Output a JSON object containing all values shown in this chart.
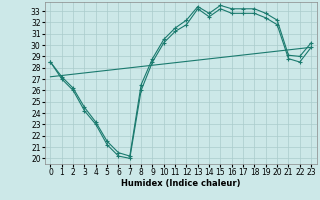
{
  "xlabel": "Humidex (Indice chaleur)",
  "bg_color": "#cce8e8",
  "grid_color": "#aacccc",
  "line_color": "#1a7a6e",
  "xlim": [
    -0.5,
    23.5
  ],
  "ylim": [
    19.5,
    33.8
  ],
  "yticks": [
    20,
    21,
    22,
    23,
    24,
    25,
    26,
    27,
    28,
    29,
    30,
    31,
    32,
    33
  ],
  "xticks": [
    0,
    1,
    2,
    3,
    4,
    5,
    6,
    7,
    8,
    9,
    10,
    11,
    12,
    13,
    14,
    15,
    16,
    17,
    18,
    19,
    20,
    21,
    22,
    23
  ],
  "curve1_x": [
    0,
    1,
    2,
    3,
    4,
    5,
    6,
    7,
    8,
    9,
    10,
    11,
    12,
    13,
    14,
    15,
    16,
    17,
    18,
    19,
    20,
    21,
    22,
    23
  ],
  "curve1_y": [
    28.5,
    27.2,
    26.2,
    24.5,
    23.2,
    21.5,
    20.5,
    20.2,
    26.5,
    28.8,
    30.5,
    31.5,
    32.2,
    33.4,
    32.8,
    33.5,
    33.2,
    33.2,
    33.2,
    32.8,
    32.2,
    29.1,
    29.0,
    30.2
  ],
  "curve2_x": [
    0,
    1,
    2,
    3,
    4,
    5,
    6,
    7,
    8,
    9,
    10,
    11,
    12,
    13,
    14,
    15,
    16,
    17,
    18,
    19,
    20,
    21,
    22,
    23
  ],
  "curve2_y": [
    28.5,
    27.0,
    26.0,
    24.2,
    23.0,
    21.2,
    20.2,
    20.0,
    26.0,
    28.5,
    30.2,
    31.2,
    31.8,
    33.2,
    32.5,
    33.2,
    32.8,
    32.8,
    32.8,
    32.4,
    31.8,
    28.8,
    28.5,
    29.8
  ],
  "line3_x": [
    0,
    23
  ],
  "line3_y": [
    27.2,
    29.8
  ],
  "marker": "+",
  "markersize": 3,
  "linewidth": 0.8,
  "tick_labelsize": 5.5
}
